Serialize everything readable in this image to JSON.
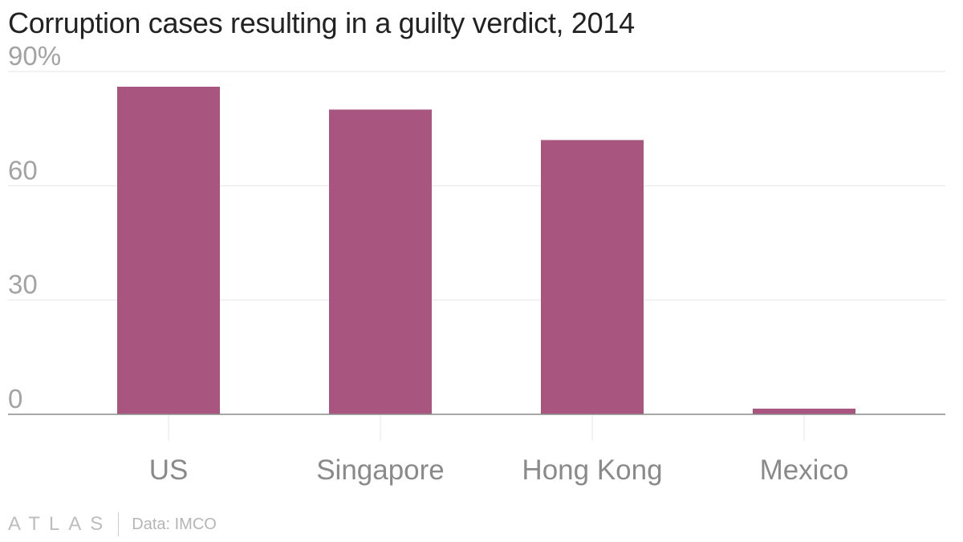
{
  "chart_data": {
    "type": "bar",
    "title": "Corruption cases resulting in a guilty verdict, 2014",
    "categories": [
      "US",
      "Singapore",
      "Hong Kong",
      "Mexico"
    ],
    "values": [
      86,
      80,
      72,
      1.5
    ],
    "yticks": [
      "90%",
      "60",
      "30",
      "0"
    ],
    "ytick_values": [
      90,
      60,
      30,
      0
    ],
    "ylim": [
      0,
      90
    ],
    "xlabel": "",
    "ylabel": "",
    "grid": true,
    "bar_color": "#a8567f"
  },
  "footer": {
    "logo": "ATLAS",
    "source": "Data: IMCO"
  }
}
